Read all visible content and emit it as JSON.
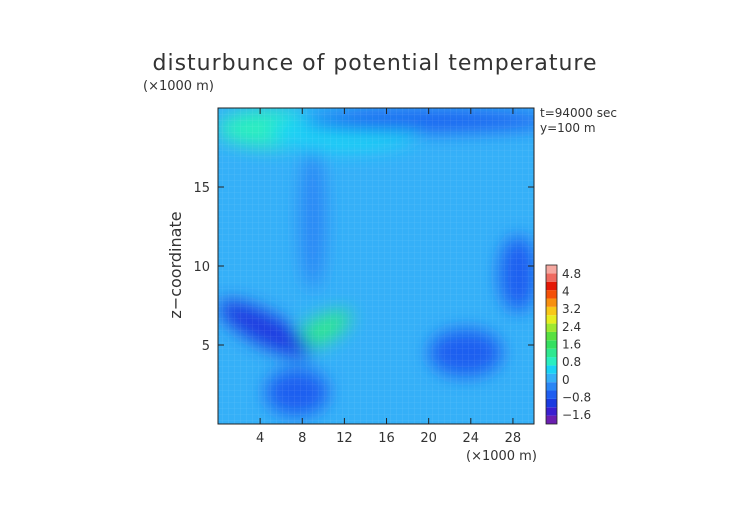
{
  "chart_data": {
    "type": "heatmap",
    "title": "disturbunce of potential temperature",
    "yunit": "(×1000 m)",
    "xunit": "(×1000 m)",
    "ylabel": "z−coordinate",
    "xlabel": "",
    "annotations": [
      "t=94000 sec",
      "y=100 m"
    ],
    "xlim": [
      0,
      30
    ],
    "ylim": [
      0,
      20
    ],
    "xticks": [
      4,
      8,
      12,
      16,
      20,
      24,
      28
    ],
    "yticks": [
      5,
      10,
      15
    ],
    "background_level": 0,
    "legend_placement": "right",
    "colorbar": {
      "labels": [
        "4.8",
        "4",
        "3.2",
        "2.4",
        "1.6",
        "0.8",
        "0",
        "−0.8",
        "−1.6"
      ],
      "levels": [
        -2.0,
        -1.6,
        -1.2,
        -0.8,
        -0.4,
        0,
        0.4,
        0.8,
        1.2,
        1.6,
        2.0,
        2.4,
        2.8,
        3.2,
        3.6,
        4.0,
        4.4,
        4.8,
        5.2
      ],
      "colors": [
        "#6a1fb0",
        "#3a1fd0",
        "#1a3be0",
        "#1f5ef0",
        "#2a86f5",
        "#35b0f8",
        "#1ad2f5",
        "#2aeec0",
        "#2fe890",
        "#35e060",
        "#58e040",
        "#9ee830",
        "#e6ee20",
        "#f8c818",
        "#f89010",
        "#f45008",
        "#e41806",
        "#ee6a60",
        "#f5a8a0"
      ]
    },
    "features": [
      {
        "name": "upper-left warm patch",
        "x": 5.0,
        "y": 18.7,
        "value": 0.9
      },
      {
        "name": "upper warm patch",
        "x": 12.0,
        "y": 18.5,
        "value": 0.7
      },
      {
        "name": "mid warm band",
        "x": 9.5,
        "y": 5.8,
        "value": 1.3
      },
      {
        "name": "top cold band",
        "x": 20.0,
        "y": 19.2,
        "value": -0.7
      },
      {
        "name": "left cold band",
        "x": 4.5,
        "y": 6.0,
        "value": -1.1
      },
      {
        "name": "right cold patch",
        "x": 28.5,
        "y": 9.5,
        "value": -0.6
      },
      {
        "name": "lower cold patch",
        "x": 7.5,
        "y": 2.0,
        "value": -0.6
      },
      {
        "name": "central cold column",
        "x": 9.0,
        "y": 13.0,
        "value": -0.4
      },
      {
        "name": "right-lower cold patch",
        "x": 23.5,
        "y": 4.5,
        "value": -0.5
      }
    ]
  }
}
